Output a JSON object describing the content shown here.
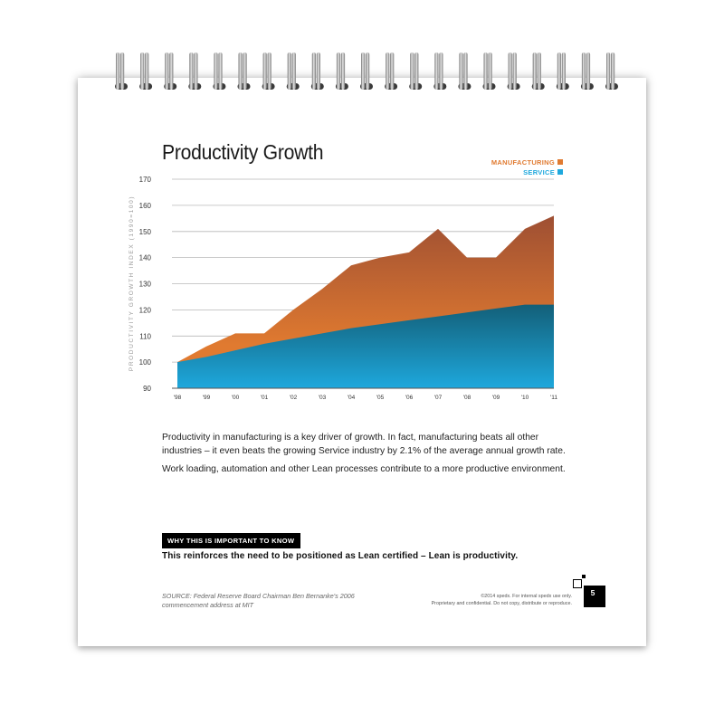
{
  "page": {
    "title": "Productivity Growth",
    "paragraph1": "Productivity in manufacturing is a key driver of growth. In fact, manufacturing beats all other industries – it even beats the growing Service industry by 2.1% of the average annual growth rate.",
    "paragraph2": "Work loading, automation and other Lean processes contribute to a more productive environment.",
    "why_label": "WHY THIS IS IMPORTANT TO KNOW",
    "why_text": "This reinforces the need to be positioned as Lean certified – Lean is productivity.",
    "source": "SOURCE: Federal Reserve Board Chairman Ben Bernanke's 2006 commencement address at MIT",
    "footer_right_1": "©2014 spedx. For internal spedx use only.",
    "footer_right_2": "Proprietary and confidential. Do not copy, distribute or reproduce.",
    "page_number": "5"
  },
  "colors": {
    "manufacturing": "#e07a30",
    "manufacturing_dark": "#9e4f33",
    "service": "#1ea8dd",
    "service_dark": "#135f78",
    "spiral": "#9a9a9a"
  },
  "chart_data": {
    "type": "area",
    "title": "Productivity Growth",
    "ylabel": "PRODUCTIVITY GROWTH INDEX (1990=100)",
    "xlabel": "",
    "ylim": [
      90,
      170
    ],
    "yticks": [
      90,
      100,
      110,
      120,
      130,
      140,
      150,
      160,
      170
    ],
    "grid": true,
    "legend_position": "top-right",
    "categories": [
      "'98",
      "'99",
      "'00",
      "'01",
      "'02",
      "'03",
      "'04",
      "'05",
      "'06",
      "'07",
      "'08",
      "'09",
      "'10",
      "'11"
    ],
    "series": [
      {
        "name": "MANUFACTURING",
        "values": [
          100,
          106,
          111,
          111,
          120,
          128,
          137,
          140,
          142,
          151,
          140,
          140,
          151,
          156
        ]
      },
      {
        "name": "SERVICE",
        "values": [
          100,
          102,
          104.5,
          107,
          109,
          111,
          113,
          114.5,
          116,
          117.5,
          119,
          120.5,
          122,
          122
        ]
      }
    ]
  }
}
